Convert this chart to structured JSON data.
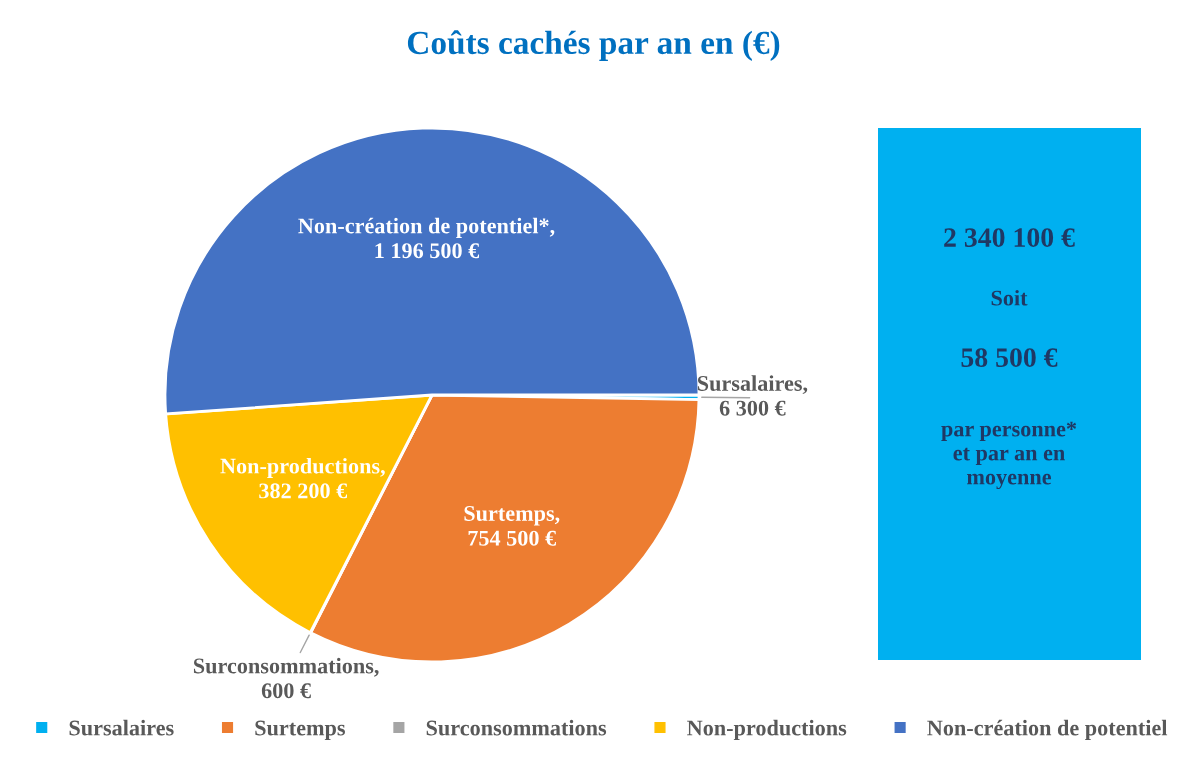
{
  "chart_data": {
    "type": "pie",
    "title": "Coûts cachés par an en (€)",
    "categories": [
      "Sursalaires",
      "Surtemps",
      "Surconsommations",
      "Non-productions",
      "Non-création de potentiel"
    ],
    "values": [
      6300,
      754500,
      600,
      382200,
      1196500
    ],
    "colors": [
      "#00b0f0",
      "#ed7d31",
      "#a5a5a5",
      "#ffc000",
      "#4472c4"
    ],
    "value_labels": [
      "Sursalaires,\n6 300 €",
      "Surtemps,\n754 500 €",
      "Surconsommations,\n600 €",
      "Non-productions,\n382 200 €",
      "Non-création de potentiel*,\n1 196 500 €"
    ],
    "annotations": [
      "2 340 100 €",
      "Soit",
      "58 500 €",
      "par personne*\net par an en\nmoyenne"
    ],
    "legend": "bottom"
  }
}
